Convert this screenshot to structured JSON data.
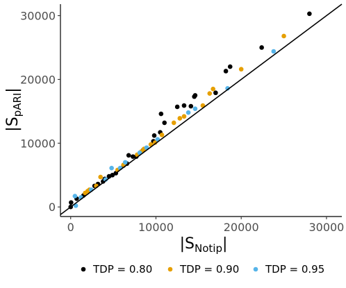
{
  "chart_data": {
    "type": "scatter",
    "title": "",
    "xlabel": {
      "main": "|S",
      "sub": "Notip",
      "close": "|"
    },
    "ylabel": {
      "main": "|S",
      "sub": "pARI",
      "close": "|"
    },
    "xlim": [
      -1200,
      31800
    ],
    "ylim": [
      -1500,
      31800
    ],
    "x_ticks": [
      0,
      10000,
      20000,
      30000
    ],
    "x_tick_labels": [
      "0",
      "10000",
      "20000",
      "30000"
    ],
    "y_ticks": [
      0,
      10000,
      20000,
      30000
    ],
    "y_tick_labels": [
      "0",
      "10000",
      "20000",
      "30000"
    ],
    "reference_line": {
      "type": "identity",
      "slope": 1,
      "intercept": 0,
      "color": "#000000"
    },
    "grid": false,
    "legend_position": "bottom",
    "series": [
      {
        "name": "TDP = 0.80",
        "color": "#000000",
        "points": [
          [
            0,
            0
          ],
          [
            50,
            700
          ],
          [
            700,
            1300
          ],
          [
            1500,
            1800
          ],
          [
            2800,
            3300
          ],
          [
            3200,
            3600
          ],
          [
            3800,
            4000
          ],
          [
            4000,
            4400
          ],
          [
            4500,
            4800
          ],
          [
            4900,
            5000
          ],
          [
            5300,
            5300
          ],
          [
            6200,
            6500
          ],
          [
            6600,
            6800
          ],
          [
            6800,
            8100
          ],
          [
            7300,
            7900
          ],
          [
            7700,
            7900
          ],
          [
            8500,
            8900
          ],
          [
            9700,
            10300
          ],
          [
            9800,
            11200
          ],
          [
            10500,
            11700
          ],
          [
            10600,
            14600
          ],
          [
            11000,
            13200
          ],
          [
            12500,
            15700
          ],
          [
            13300,
            15900
          ],
          [
            14100,
            15800
          ],
          [
            14500,
            17300
          ],
          [
            14600,
            17500
          ],
          [
            17000,
            17900
          ],
          [
            18200,
            21300
          ],
          [
            18700,
            22000
          ],
          [
            22400,
            25000
          ],
          [
            28000,
            30300
          ]
        ]
      },
      {
        "name": "TDP = 0.90",
        "color": "#E69F00",
        "points": [
          [
            1700,
            2200
          ],
          [
            2000,
            2500
          ],
          [
            2200,
            2700
          ],
          [
            3000,
            3300
          ],
          [
            3500,
            4700
          ],
          [
            5500,
            5800
          ],
          [
            6200,
            6600
          ],
          [
            7800,
            8200
          ],
          [
            8300,
            8700
          ],
          [
            8600,
            9100
          ],
          [
            9400,
            9800
          ],
          [
            9900,
            10100
          ],
          [
            10700,
            11300
          ],
          [
            12100,
            13200
          ],
          [
            12800,
            13900
          ],
          [
            13300,
            14200
          ],
          [
            15500,
            15900
          ],
          [
            16300,
            17800
          ],
          [
            16700,
            18500
          ],
          [
            20000,
            21600
          ],
          [
            25000,
            26800
          ]
        ]
      },
      {
        "name": "TDP = 0.95",
        "color": "#56B4E9",
        "points": [
          [
            600,
            200
          ],
          [
            500,
            1700
          ],
          [
            1200,
            1500
          ],
          [
            2400,
            2700
          ],
          [
            4100,
            4300
          ],
          [
            4800,
            6100
          ],
          [
            5800,
            6100
          ],
          [
            6400,
            7000
          ],
          [
            8100,
            8500
          ],
          [
            8900,
            9300
          ],
          [
            10200,
            10600
          ],
          [
            13800,
            14800
          ],
          [
            14600,
            15400
          ],
          [
            18400,
            18600
          ],
          [
            23800,
            24400
          ]
        ]
      }
    ]
  }
}
